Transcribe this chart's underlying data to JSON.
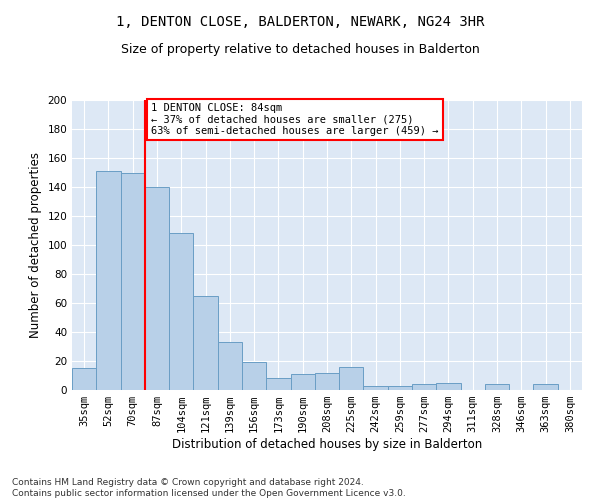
{
  "title": "1, DENTON CLOSE, BALDERTON, NEWARK, NG24 3HR",
  "subtitle": "Size of property relative to detached houses in Balderton",
  "xlabel": "Distribution of detached houses by size in Balderton",
  "ylabel": "Number of detached properties",
  "bar_labels": [
    "35sqm",
    "52sqm",
    "70sqm",
    "87sqm",
    "104sqm",
    "121sqm",
    "139sqm",
    "156sqm",
    "173sqm",
    "190sqm",
    "208sqm",
    "225sqm",
    "242sqm",
    "259sqm",
    "277sqm",
    "294sqm",
    "311sqm",
    "328sqm",
    "346sqm",
    "363sqm",
    "380sqm"
  ],
  "bar_values": [
    15,
    151,
    150,
    140,
    108,
    65,
    33,
    19,
    8,
    11,
    12,
    16,
    3,
    3,
    4,
    5,
    0,
    4,
    0,
    4,
    0
  ],
  "bar_color": "#b8d0e8",
  "bar_edge_color": "#6a9ec5",
  "bg_color": "#dde8f5",
  "grid_color": "#ffffff",
  "vline_color": "red",
  "annotation_text": "1 DENTON CLOSE: 84sqm\n← 37% of detached houses are smaller (275)\n63% of semi-detached houses are larger (459) →",
  "annotation_box_color": "white",
  "annotation_box_edge": "red",
  "ylim": [
    0,
    200
  ],
  "yticks": [
    0,
    20,
    40,
    60,
    80,
    100,
    120,
    140,
    160,
    180,
    200
  ],
  "footer": "Contains HM Land Registry data © Crown copyright and database right 2024.\nContains public sector information licensed under the Open Government Licence v3.0.",
  "title_fontsize": 10,
  "subtitle_fontsize": 9,
  "xlabel_fontsize": 8.5,
  "ylabel_fontsize": 8.5,
  "tick_fontsize": 7.5,
  "footer_fontsize": 6.5,
  "annotation_fontsize": 7.5
}
